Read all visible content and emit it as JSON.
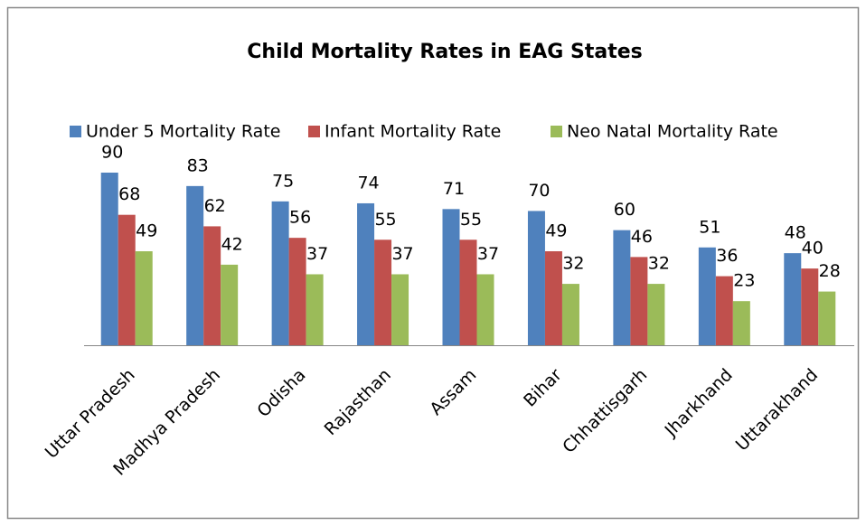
{
  "chart_data": {
    "type": "bar",
    "title": "Child Mortality Rates in EAG States",
    "categories": [
      "Uttar Pradesh",
      "Madhya Pradesh",
      "Odisha",
      "Rajasthan",
      "Assam",
      "Bihar",
      "Chhattisgarh",
      "Jharkhand",
      "Uttarakhand"
    ],
    "series": [
      {
        "name": "Under 5 Mortality Rate",
        "color": "#4f81bd",
        "values": [
          90,
          83,
          75,
          74,
          71,
          70,
          60,
          51,
          48
        ]
      },
      {
        "name": "Infant Mortality Rate",
        "color": "#c0504d",
        "values": [
          68,
          62,
          56,
          55,
          55,
          49,
          46,
          36,
          40
        ]
      },
      {
        "name": "Neo Natal Mortality Rate",
        "color": "#9bbb59",
        "values": [
          49,
          42,
          37,
          37,
          37,
          32,
          32,
          23,
          28
        ]
      }
    ],
    "legend": "top"
  }
}
